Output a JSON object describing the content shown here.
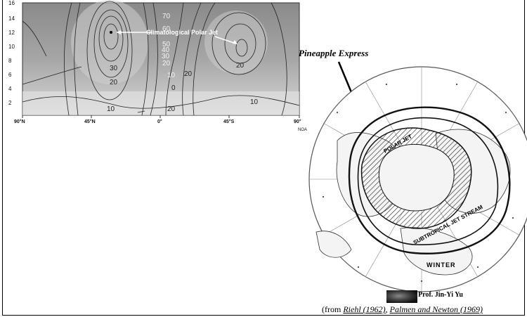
{
  "panel": {
    "y_ticks": [
      "16",
      "14",
      "12",
      "10",
      "8",
      "6",
      "4",
      "2"
    ],
    "x_ticks": [
      "90°N",
      "45°N",
      "0°",
      "45°S",
      "90°"
    ],
    "corner_label": "NOA",
    "contour_labels": [
      "70",
      "60",
      "50",
      "40",
      "30",
      "20",
      "10",
      "30",
      "20",
      "10",
      "20",
      "20",
      "10",
      "0",
      "20"
    ],
    "jet_label": "Climatological Polar Jet"
  },
  "map": {
    "callout": "Pineapple Express",
    "polar_jet_label": "POLAR JET",
    "subtropical_label": "SUBTROPICAL JET STREAM",
    "season_label": "WINTER"
  },
  "footer": {
    "credit": "Prof. Jin-Yi Yu",
    "source_prefix": "(from ",
    "source_ref1": "Riehl (1962)",
    "source_sep": ", ",
    "source_ref2": "Palmen and Newton (1969)"
  }
}
